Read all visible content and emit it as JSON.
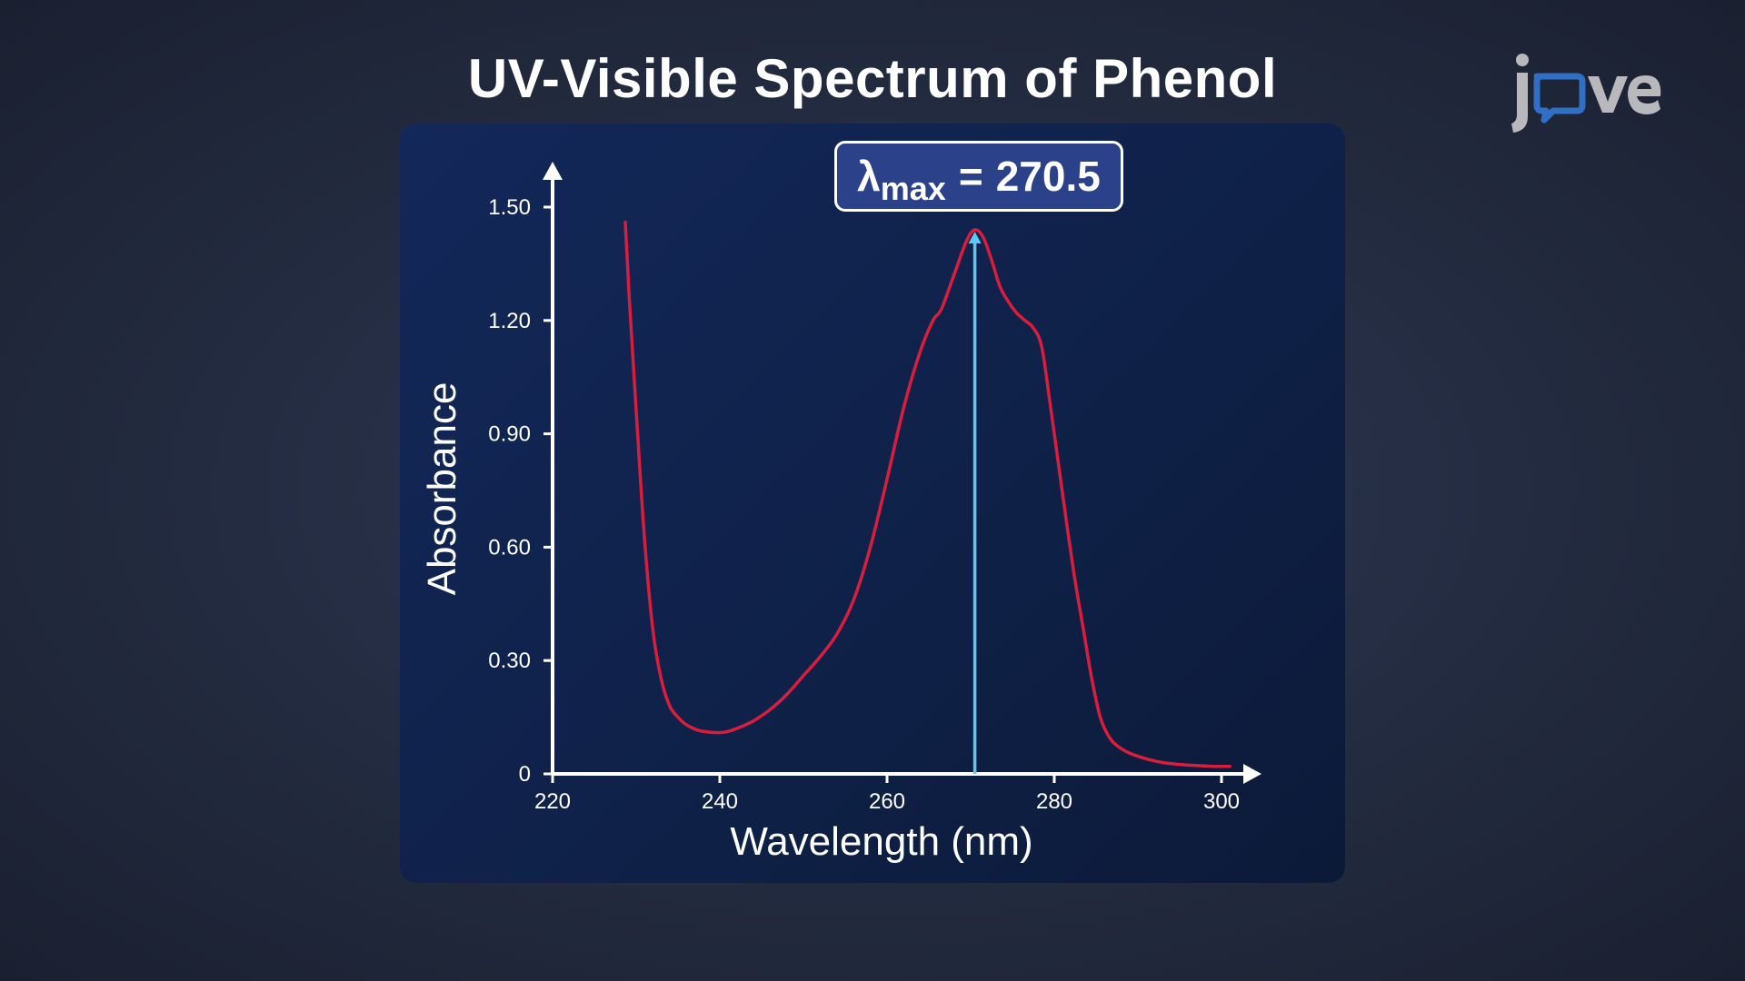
{
  "page": {
    "title": "UV-Visible Spectrum of Phenol",
    "logo_text": "jove"
  },
  "annotation": {
    "symbol": "λ",
    "subscript": "max",
    "equals": "=",
    "value": "270.5",
    "marker_x": 270.5,
    "marker_color": "#5bc8f0"
  },
  "colors": {
    "curve": "#d81e3c",
    "axis": "#ffffff",
    "panel": "#10244f",
    "badge": "#2b4189"
  },
  "chart_data": {
    "type": "line",
    "title": "UV-Visible Spectrum of Phenol",
    "xlabel": "Wavelength (nm)",
    "ylabel": "Absorbance",
    "xlim": [
      220,
      302
    ],
    "ylim": [
      0,
      1.5
    ],
    "xticks": [
      220,
      240,
      260,
      280,
      300
    ],
    "xtick_labels": [
      "220",
      "240",
      "260",
      "280",
      "300"
    ],
    "yticks": [
      0,
      0.3,
      0.6,
      0.9,
      1.2,
      1.5
    ],
    "ytick_labels": [
      "0",
      "0.30",
      "0.60",
      "0.90",
      "1.20",
      "1.50"
    ],
    "grid": false,
    "legend": "none",
    "series": [
      {
        "x": [
          228.7,
          229.2,
          230.0,
          231.0,
          232.0,
          233.0,
          234.0,
          235.0,
          236.0,
          237.5,
          239.0,
          240.5,
          242.0,
          244.0,
          246.0,
          248.0,
          250.0,
          252.0,
          254.0,
          256.0,
          258.0,
          260.0,
          262.0,
          264.0,
          265.5,
          266.5,
          268.0,
          269.5,
          270.5,
          271.5,
          272.5,
          273.5,
          274.5,
          275.5,
          276.5,
          277.5,
          278.5,
          279.5,
          280.5,
          281.5,
          282.5,
          283.5,
          284.5,
          285.5,
          286.5,
          287.5,
          289.0,
          291.0,
          293.0,
          295.0,
          297.0,
          299.0,
          301.0
        ],
        "y": [
          1.46,
          1.25,
          0.96,
          0.62,
          0.38,
          0.25,
          0.18,
          0.15,
          0.13,
          0.115,
          0.11,
          0.11,
          0.12,
          0.14,
          0.17,
          0.21,
          0.26,
          0.31,
          0.37,
          0.46,
          0.6,
          0.78,
          0.97,
          1.12,
          1.2,
          1.23,
          1.32,
          1.41,
          1.44,
          1.42,
          1.36,
          1.29,
          1.25,
          1.22,
          1.2,
          1.18,
          1.13,
          0.98,
          0.82,
          0.66,
          0.51,
          0.38,
          0.25,
          0.15,
          0.1,
          0.075,
          0.055,
          0.04,
          0.03,
          0.025,
          0.022,
          0.02,
          0.02
        ]
      }
    ]
  }
}
